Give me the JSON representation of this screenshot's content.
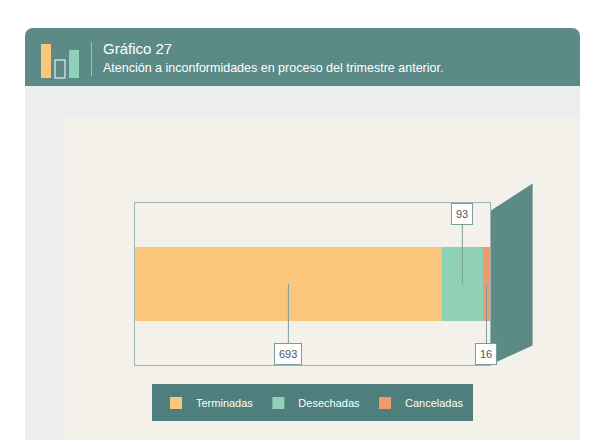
{
  "chart_data": {
    "type": "bar",
    "title": "Gráfico 27",
    "subtitle": "Atención a inconformidades en proceso del trimestre anterior.",
    "orientation": "horizontal",
    "stacked": true,
    "data_labels": true,
    "tick_labels": false,
    "legend": "bottom",
    "categories": [
      null
    ],
    "series": [
      {
        "name": "Terminadas",
        "color": "#f9c67b",
        "values": [
          693
        ]
      },
      {
        "name": "Desechadas",
        "color": "#8fd0b6",
        "values": [
          93
        ]
      },
      {
        "name": "Canceladas",
        "color": "#f29a6c",
        "values": [
          16
        ]
      }
    ],
    "xlim": [
      0,
      802
    ],
    "xticks": []
  }
}
